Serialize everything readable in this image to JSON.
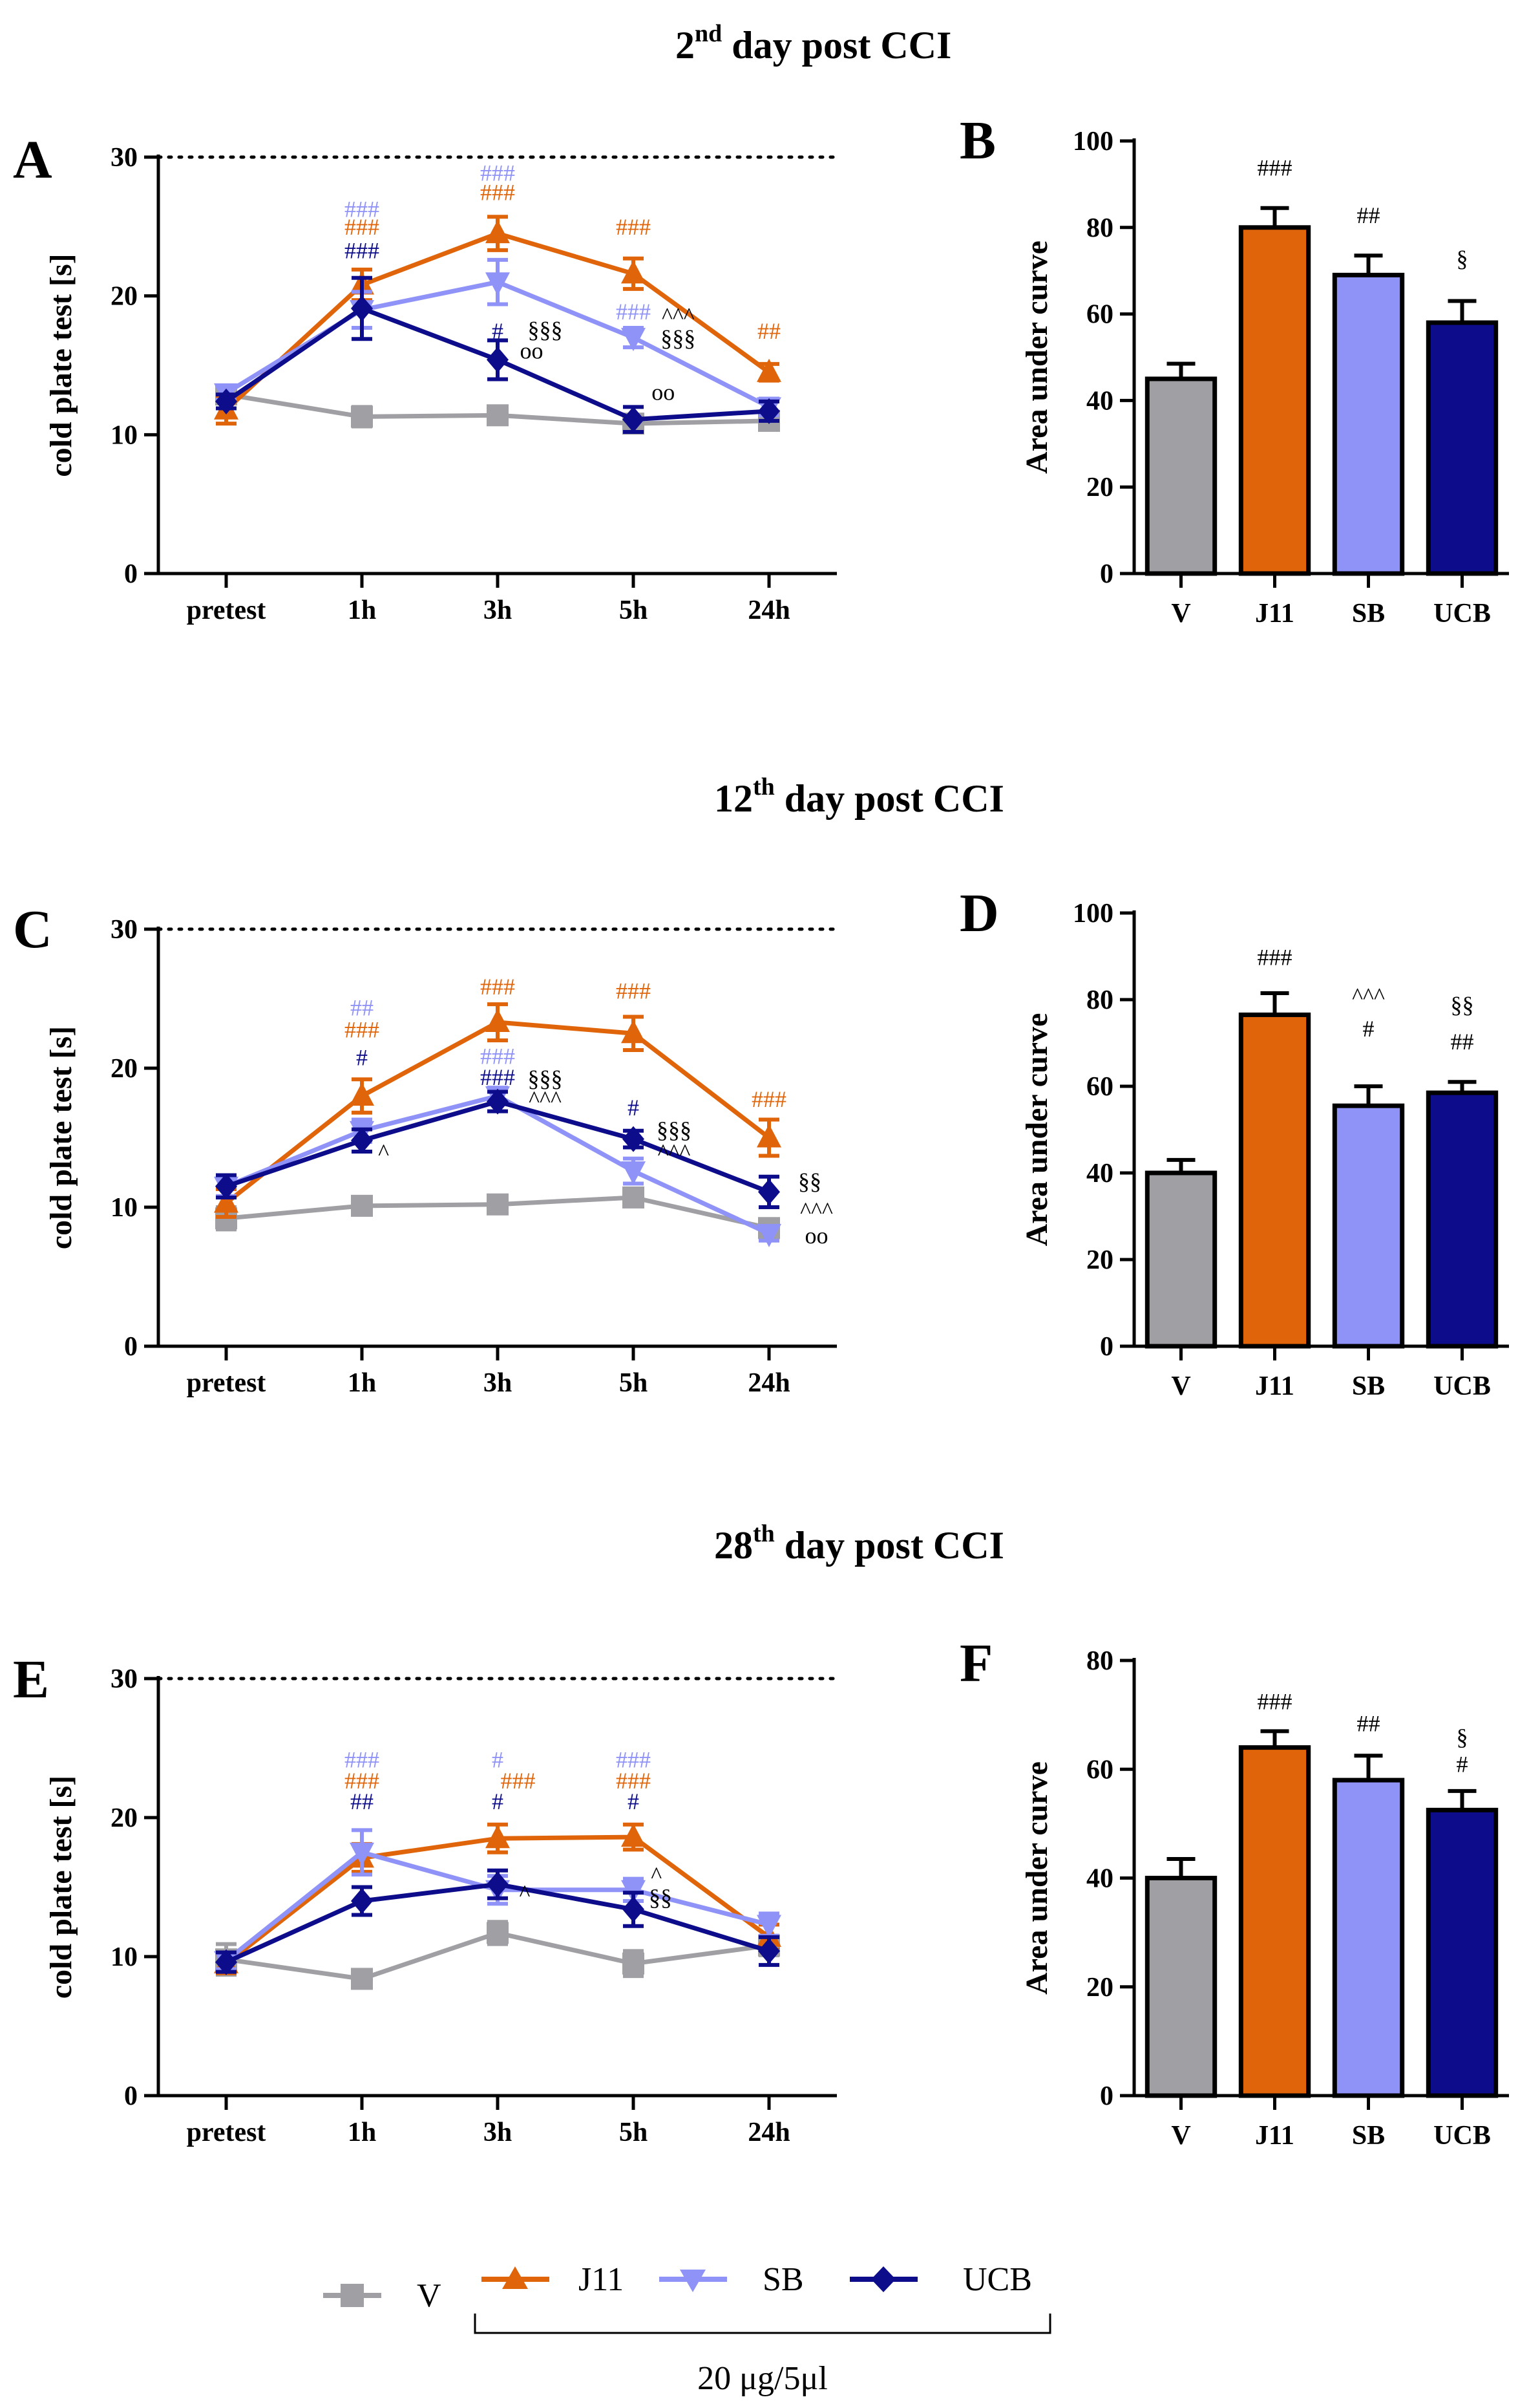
{
  "colors": {
    "V": "#a0a0a4",
    "J11": "#e0650a",
    "SB": "#8f92f7",
    "UCB": "#0d0c8a",
    "black": "#000000"
  },
  "sections": [
    {
      "key": "day2",
      "ordinal": "2",
      "suffix": "nd",
      "text": "day post CCI"
    },
    {
      "key": "day12",
      "ordinal": "12",
      "suffix": "th",
      "text": "day post CCI"
    },
    {
      "key": "day28",
      "ordinal": "28",
      "suffix": "th",
      "text": "day post CCI"
    }
  ],
  "legend": {
    "items": [
      {
        "key": "V",
        "label": "V",
        "marker": "square"
      },
      {
        "key": "J11",
        "label": "J11",
        "marker": "triangle-up"
      },
      {
        "key": "SB",
        "label": "SB",
        "marker": "triangle-down"
      },
      {
        "key": "UCB",
        "label": "UCB",
        "marker": "diamond"
      }
    ],
    "dose": "20 μg/5μl"
  },
  "chart_data": [
    {
      "panel": "A",
      "type": "line",
      "ylabel": "cold plate test  [s]",
      "ylim": [
        0,
        30
      ],
      "yticks": [
        0,
        10,
        20,
        30
      ],
      "cutoff": 30,
      "categories": [
        "pretest",
        "1h",
        "3h",
        "5h",
        "24h"
      ],
      "series": [
        {
          "name": "V",
          "values": [
            12.9,
            11.3,
            11.4,
            10.8,
            11.0
          ],
          "errors": [
            0.5,
            0.7,
            0.6,
            0.5,
            0.6
          ]
        },
        {
          "name": "J11",
          "values": [
            11.8,
            20.8,
            24.5,
            21.6,
            14.5
          ],
          "errors": [
            1.0,
            1.1,
            1.2,
            1.1,
            0.6
          ]
        },
        {
          "name": "SB",
          "values": [
            13.0,
            19.0,
            21.0,
            17.0,
            12.0
          ],
          "errors": [
            0.5,
            1.3,
            1.6,
            0.7,
            0.6
          ]
        },
        {
          "name": "UCB",
          "values": [
            12.4,
            19.1,
            15.4,
            11.1,
            11.7
          ],
          "errors": [
            0.5,
            2.2,
            1.4,
            0.9,
            0.7
          ]
        }
      ],
      "annotations": [
        {
          "cat": 1,
          "y": 25.7,
          "text": "###",
          "color": "SB"
        },
        {
          "cat": 1,
          "y": 24.4,
          "text": "###",
          "color": "J11"
        },
        {
          "cat": 1,
          "y": 22.7,
          "text": "###",
          "color": "UCB"
        },
        {
          "cat": 2,
          "y": 28.3,
          "text": "###",
          "color": "SB"
        },
        {
          "cat": 2,
          "y": 26.9,
          "text": "###",
          "color": "J11"
        },
        {
          "cat": 2,
          "y": 16.9,
          "text": "#",
          "color": "UCB"
        },
        {
          "cat": 2.35,
          "y": 17.0,
          "text": "§§§",
          "color": "black"
        },
        {
          "cat": 2.25,
          "y": 15.5,
          "text": "oo",
          "color": "black"
        },
        {
          "cat": 3,
          "y": 24.4,
          "text": "###",
          "color": "J11"
        },
        {
          "cat": 3,
          "y": 18.3,
          "text": "###",
          "color": "SB"
        },
        {
          "cat": 3.33,
          "y": 18.0,
          "text": "^^^",
          "color": "black"
        },
        {
          "cat": 3.33,
          "y": 16.4,
          "text": "§§§",
          "color": "black"
        },
        {
          "cat": 3.22,
          "y": 12.5,
          "text": "oo",
          "color": "black"
        },
        {
          "cat": 4,
          "y": 16.9,
          "text": "##",
          "color": "J11"
        }
      ]
    },
    {
      "panel": "B",
      "type": "bar",
      "ylabel": "Area under curve",
      "ylim": [
        0,
        100
      ],
      "yticks": [
        0,
        20,
        40,
        60,
        80,
        100
      ],
      "categories": [
        "V",
        "J11",
        "SB",
        "UCB"
      ],
      "values": [
        45,
        80,
        69,
        58
      ],
      "errors": [
        3.5,
        4.5,
        4.5,
        5.0
      ],
      "annotations": [
        {
          "cat": 1,
          "y": 92,
          "text": "###"
        },
        {
          "cat": 2,
          "y": 81,
          "text": "##"
        },
        {
          "cat": 3,
          "y": 71,
          "text": "§"
        }
      ]
    },
    {
      "panel": "C",
      "type": "line",
      "ylabel": "cold plate test  [s]",
      "ylim": [
        0,
        30
      ],
      "yticks": [
        0,
        10,
        20,
        30
      ],
      "cutoff": 30,
      "categories": [
        "pretest",
        "1h",
        "3h",
        "5h",
        "24h"
      ],
      "series": [
        {
          "name": "V",
          "values": [
            9.2,
            10.1,
            10.2,
            10.7,
            8.5
          ],
          "errors": [
            0.8,
            0.6,
            0.6,
            0.6,
            0.5
          ]
        },
        {
          "name": "J11",
          "values": [
            10.3,
            18.0,
            23.3,
            22.5,
            15.0
          ],
          "errors": [
            1.0,
            1.2,
            1.3,
            1.2,
            1.3
          ]
        },
        {
          "name": "SB",
          "values": [
            11.5,
            15.5,
            18.0,
            12.6,
            8.1
          ],
          "errors": [
            0.7,
            0.8,
            0.6,
            0.9,
            0.5
          ]
        },
        {
          "name": "UCB",
          "values": [
            11.5,
            14.8,
            17.6,
            14.9,
            11.1
          ],
          "errors": [
            0.8,
            0.8,
            0.7,
            0.6,
            1.1
          ]
        }
      ],
      "annotations": [
        {
          "cat": 1,
          "y": 23.8,
          "text": "##",
          "color": "SB"
        },
        {
          "cat": 1,
          "y": 22.2,
          "text": "###",
          "color": "J11"
        },
        {
          "cat": 1,
          "y": 20.2,
          "text": "#",
          "color": "UCB"
        },
        {
          "cat": 1.16,
          "y": 13.4,
          "text": "^",
          "color": "black"
        },
        {
          "cat": 2,
          "y": 25.3,
          "text": "###",
          "color": "J11"
        },
        {
          "cat": 2,
          "y": 20.3,
          "text": "###",
          "color": "SB"
        },
        {
          "cat": 2,
          "y": 18.8,
          "text": "###",
          "color": "UCB"
        },
        {
          "cat": 2.35,
          "y": 18.7,
          "text": "§§§",
          "color": "black"
        },
        {
          "cat": 2.35,
          "y": 17.2,
          "text": "^^^",
          "color": "black"
        },
        {
          "cat": 3,
          "y": 25.0,
          "text": "###",
          "color": "J11"
        },
        {
          "cat": 3,
          "y": 16.6,
          "text": "#",
          "color": "UCB"
        },
        {
          "cat": 3.3,
          "y": 15.0,
          "text": "§§§",
          "color": "black"
        },
        {
          "cat": 3.3,
          "y": 13.4,
          "text": "^^^",
          "color": "black"
        },
        {
          "cat": 4,
          "y": 17.2,
          "text": "###",
          "color": "J11"
        },
        {
          "cat": 4.3,
          "y": 11.3,
          "text": "§§",
          "color": "black"
        },
        {
          "cat": 4.35,
          "y": 9.2,
          "text": "^^^",
          "color": "black"
        },
        {
          "cat": 4.35,
          "y": 7.4,
          "text": "oo",
          "color": "black"
        }
      ]
    },
    {
      "panel": "D",
      "type": "bar",
      "ylabel": "Area under curve",
      "ylim": [
        0,
        100
      ],
      "yticks": [
        0,
        20,
        40,
        60,
        80,
        100
      ],
      "categories": [
        "V",
        "J11",
        "SB",
        "UCB"
      ],
      "values": [
        40,
        76.5,
        55.5,
        58.5
      ],
      "errors": [
        3.0,
        5.0,
        4.5,
        2.5
      ],
      "annotations": [
        {
          "cat": 1,
          "y": 88,
          "text": "###"
        },
        {
          "cat": 2,
          "y": 79,
          "text": "^^^"
        },
        {
          "cat": 2,
          "y": 71.5,
          "text": "#"
        },
        {
          "cat": 3,
          "y": 77,
          "text": "§§"
        },
        {
          "cat": 3,
          "y": 68.5,
          "text": "##"
        }
      ]
    },
    {
      "panel": "E",
      "type": "line",
      "ylabel": "cold plate test  [s]",
      "ylim": [
        0,
        30
      ],
      "yticks": [
        0,
        10,
        20,
        30
      ],
      "cutoff": 30,
      "categories": [
        "pretest",
        "1h",
        "3h",
        "5h",
        "24h"
      ],
      "series": [
        {
          "name": "V",
          "values": [
            9.8,
            8.4,
            11.7,
            9.5,
            10.8
          ],
          "errors": [
            1.1,
            0.4,
            0.8,
            0.9,
            0.7
          ]
        },
        {
          "name": "J11",
          "values": [
            9.5,
            17.1,
            18.5,
            18.6,
            11.4
          ],
          "errors": [
            0.7,
            1.0,
            1.0,
            0.9,
            0.9
          ]
        },
        {
          "name": "SB",
          "values": [
            9.7,
            17.5,
            14.8,
            14.8,
            12.3
          ],
          "errors": [
            0.6,
            1.6,
            1.0,
            0.8,
            0.8
          ]
        },
        {
          "name": "UCB",
          "values": [
            9.6,
            14.0,
            15.2,
            13.4,
            10.4
          ],
          "errors": [
            0.7,
            1.0,
            1.0,
            1.2,
            1.0
          ]
        }
      ],
      "annotations": [
        {
          "cat": 1,
          "y": 23.6,
          "text": "###",
          "color": "SB"
        },
        {
          "cat": 1,
          "y": 22.1,
          "text": "###",
          "color": "J11"
        },
        {
          "cat": 1,
          "y": 20.6,
          "text": "##",
          "color": "UCB"
        },
        {
          "cat": 2,
          "y": 23.6,
          "text": "#",
          "color": "SB"
        },
        {
          "cat": 2.15,
          "y": 22.1,
          "text": "###",
          "color": "J11"
        },
        {
          "cat": 2,
          "y": 20.6,
          "text": "#",
          "color": "UCB"
        },
        {
          "cat": 2.2,
          "y": 14.0,
          "text": "^",
          "color": "black"
        },
        {
          "cat": 3,
          "y": 23.6,
          "text": "###",
          "color": "SB"
        },
        {
          "cat": 3,
          "y": 22.1,
          "text": "###",
          "color": "J11"
        },
        {
          "cat": 3,
          "y": 20.6,
          "text": "#",
          "color": "UCB"
        },
        {
          "cat": 3.17,
          "y": 15.3,
          "text": "^",
          "color": "black"
        },
        {
          "cat": 3.2,
          "y": 13.7,
          "text": "§§",
          "color": "black"
        }
      ]
    },
    {
      "panel": "F",
      "type": "bar",
      "ylabel": "Area under curve",
      "ylim": [
        0,
        80
      ],
      "yticks": [
        0,
        20,
        40,
        60,
        80
      ],
      "categories": [
        "V",
        "J11",
        "SB",
        "UCB"
      ],
      "values": [
        40,
        64,
        58,
        52.5
      ],
      "errors": [
        3.5,
        3.0,
        4.5,
        3.5
      ],
      "annotations": [
        {
          "cat": 1,
          "y": 71,
          "text": "###"
        },
        {
          "cat": 2,
          "y": 67,
          "text": "##"
        },
        {
          "cat": 3,
          "y": 64.5,
          "text": "§"
        },
        {
          "cat": 3,
          "y": 59.5,
          "text": "#"
        }
      ]
    }
  ]
}
